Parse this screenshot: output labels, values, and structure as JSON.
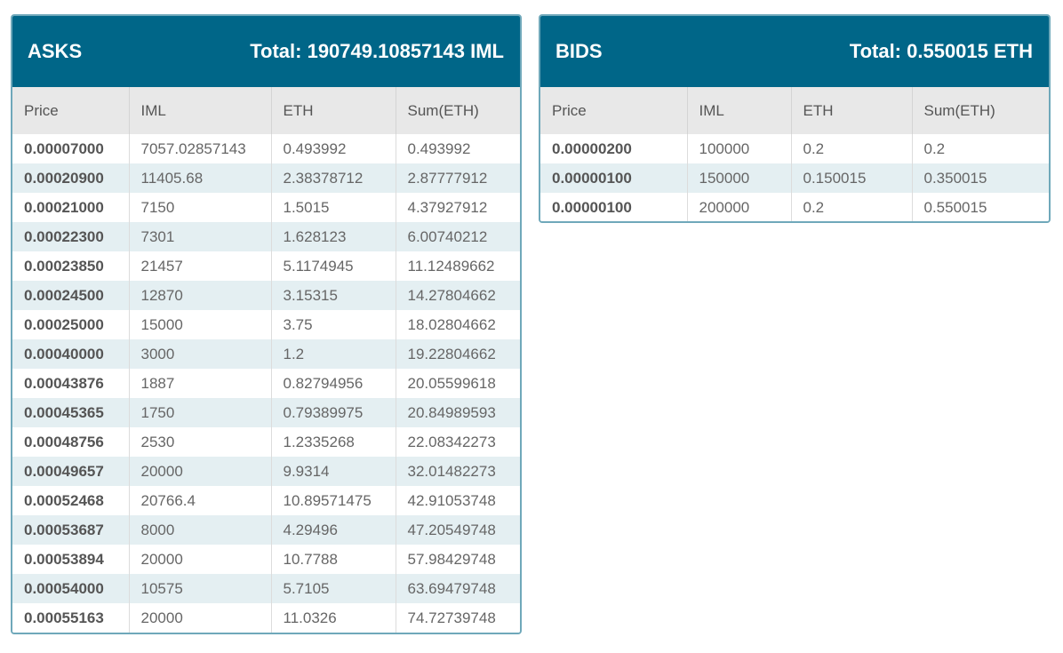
{
  "asks": {
    "title": "ASKS",
    "total": "Total: 190749.10857143 IML",
    "columns": [
      "Price",
      "IML",
      "ETH",
      "Sum(ETH)"
    ],
    "rows": [
      [
        "0.00007000",
        "7057.02857143",
        "0.493992",
        "0.493992"
      ],
      [
        "0.00020900",
        "11405.68",
        "2.38378712",
        "2.87777912"
      ],
      [
        "0.00021000",
        "7150",
        "1.5015",
        "4.37927912"
      ],
      [
        "0.00022300",
        "7301",
        "1.628123",
        "6.00740212"
      ],
      [
        "0.00023850",
        "21457",
        "5.1174945",
        "11.12489662"
      ],
      [
        "0.00024500",
        "12870",
        "3.15315",
        "14.27804662"
      ],
      [
        "0.00025000",
        "15000",
        "3.75",
        "18.02804662"
      ],
      [
        "0.00040000",
        "3000",
        "1.2",
        "19.22804662"
      ],
      [
        "0.00043876",
        "1887",
        "0.82794956",
        "20.05599618"
      ],
      [
        "0.00045365",
        "1750",
        "0.79389975",
        "20.84989593"
      ],
      [
        "0.00048756",
        "2530",
        "1.2335268",
        "22.08342273"
      ],
      [
        "0.00049657",
        "20000",
        "9.9314",
        "32.01482273"
      ],
      [
        "0.00052468",
        "20766.4",
        "10.89571475",
        "42.91053748"
      ],
      [
        "0.00053687",
        "8000",
        "4.29496",
        "47.20549748"
      ],
      [
        "0.00053894",
        "20000",
        "10.7788",
        "57.98429748"
      ],
      [
        "0.00054000",
        "10575",
        "5.7105",
        "63.69479748"
      ],
      [
        "0.00055163",
        "20000",
        "11.0326",
        "74.72739748"
      ]
    ]
  },
  "bids": {
    "title": "BIDS",
    "total": "Total: 0.550015 ETH",
    "columns": [
      "Price",
      "IML",
      "ETH",
      "Sum(ETH)"
    ],
    "rows": [
      [
        "0.00000200",
        "100000",
        "0.2",
        "0.2"
      ],
      [
        "0.00000100",
        "150000",
        "0.150015",
        "0.350015"
      ],
      [
        "0.00000100",
        "200000",
        "0.2",
        "0.550015"
      ]
    ]
  },
  "colors": {
    "header": "#006688",
    "border": "#6fa8ba",
    "row_alt": "#e4eff2",
    "thead": "#e8e8e8"
  }
}
